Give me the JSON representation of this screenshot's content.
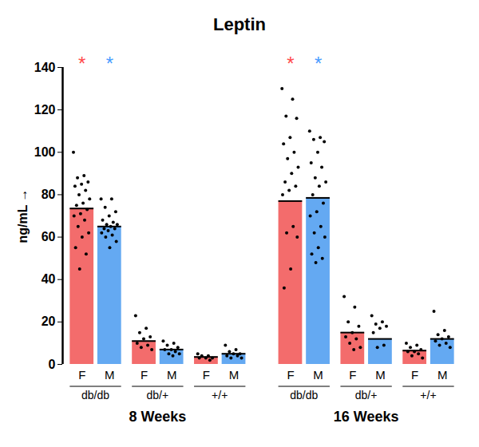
{
  "chart_data": {
    "type": "bar",
    "title": "Leptin",
    "y_label": "ng/mL",
    "categories": [
      "F",
      "M",
      "F",
      "M",
      "F",
      "M",
      "F",
      "M",
      "F",
      "M",
      "F",
      "M"
    ],
    "groups": [
      "db/db",
      "db/+",
      "+/+",
      "db/db",
      "db/+",
      "+/+"
    ],
    "timepoints": [
      "8 Weeks",
      "16 Weeks"
    ],
    "values": [
      73.5,
      65,
      11,
      7,
      3.5,
      5,
      77,
      78.5,
      15,
      12,
      6.5,
      12
    ],
    "colors": [
      "#f36c6c",
      "#64a9f2",
      "#f36c6c",
      "#64a9f2",
      "#f36c6c",
      "#64a9f2",
      "#f36c6c",
      "#64a9f2",
      "#f36c6c",
      "#64a9f2",
      "#f36c6c",
      "#64a9f2"
    ],
    "points": [
      [
        100,
        89,
        88,
        86,
        85,
        84,
        82,
        80,
        78,
        76,
        75,
        73,
        71,
        70,
        68,
        65,
        62,
        60,
        55,
        52,
        45
      ],
      [
        78,
        78,
        74,
        72,
        70,
        68,
        67,
        66,
        66,
        65,
        64,
        64,
        63,
        62,
        61,
        60,
        58,
        55
      ],
      [
        23,
        17,
        15,
        13,
        12,
        10,
        9,
        8,
        7
      ],
      [
        11,
        10,
        9,
        8,
        7,
        7,
        6,
        5,
        5,
        4
      ],
      [
        5,
        4,
        4,
        3,
        3,
        3,
        2
      ],
      [
        9,
        7,
        6,
        5,
        5,
        4,
        4,
        3,
        3
      ],
      [
        130,
        125,
        117,
        116,
        107,
        104,
        100,
        97,
        93,
        90,
        86,
        84,
        82,
        80,
        65,
        62,
        60,
        45,
        36
      ],
      [
        110,
        107,
        106,
        105,
        100,
        95,
        93,
        88,
        86,
        84,
        80,
        76,
        72,
        70,
        65,
        62,
        60,
        55,
        52,
        50,
        48
      ],
      [
        32,
        27,
        20,
        18,
        15,
        13,
        12,
        10,
        8,
        7
      ],
      [
        23,
        20,
        19,
        18,
        17,
        15,
        9,
        8
      ],
      [
        10,
        9,
        8,
        7,
        6,
        6,
        5,
        4,
        3
      ],
      [
        25,
        16,
        14,
        13,
        12,
        11,
        10,
        9,
        8
      ]
    ],
    "annotations": [
      {
        "text": "*",
        "index": 0,
        "color": "#ff4a4a"
      },
      {
        "text": "*",
        "index": 1,
        "color": "#4a9cff"
      },
      {
        "text": "*",
        "index": 6,
        "color": "#ff4a4a"
      },
      {
        "text": "*",
        "index": 7,
        "color": "#4a9cff"
      }
    ],
    "ylim": [
      0,
      140
    ],
    "yticks": [
      0,
      20,
      40,
      60,
      80,
      100,
      120,
      140
    ]
  }
}
